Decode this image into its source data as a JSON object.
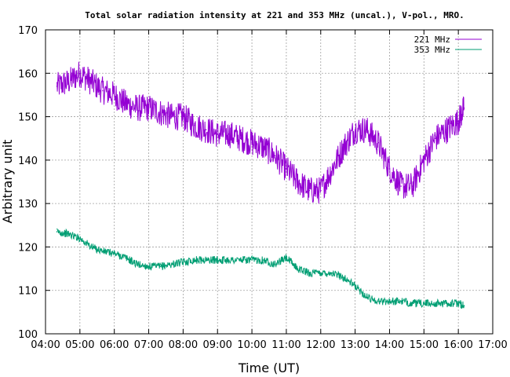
{
  "chart_data": {
    "type": "line",
    "title": "Total solar radiation intensity at 221 and 353 MHz (uncal.), V-pol., MRO.",
    "xlabel": "Time (UT)",
    "ylabel": "Arbitrary unit",
    "xlim": [
      "04:00",
      "17:00"
    ],
    "ylim": [
      100,
      170
    ],
    "x_tick_labels": [
      "04:00",
      "05:00",
      "06:00",
      "07:00",
      "08:00",
      "09:00",
      "10:00",
      "11:00",
      "12:00",
      "13:00",
      "14:00",
      "15:00",
      "16:00",
      "17:00"
    ],
    "y_tick_labels": [
      "100",
      "110",
      "120",
      "130",
      "140",
      "150",
      "160",
      "170"
    ],
    "grid": true,
    "legend_position": "top-right",
    "series": [
      {
        "name": "221 MHz",
        "color": "#9400d3",
        "x": [
          "04:20",
          "04:40",
          "05:00",
          "05:20",
          "05:40",
          "06:00",
          "06:20",
          "06:40",
          "07:00",
          "07:20",
          "07:40",
          "08:00",
          "08:20",
          "08:40",
          "09:00",
          "09:20",
          "09:40",
          "10:00",
          "10:20",
          "10:40",
          "11:00",
          "11:20",
          "11:40",
          "12:00",
          "12:20",
          "12:40",
          "13:00",
          "13:20",
          "13:40",
          "14:00",
          "14:20",
          "14:40",
          "15:00",
          "15:20",
          "15:40",
          "16:00",
          "16:10"
        ],
        "values": [
          157,
          158,
          160,
          158,
          156,
          155,
          153,
          152,
          152,
          151,
          150,
          150,
          148,
          147,
          146,
          146,
          145,
          144,
          143,
          141,
          138,
          135,
          133,
          133,
          138,
          143,
          147,
          147,
          144,
          138,
          134,
          134,
          140,
          145,
          147,
          149,
          152
        ]
      },
      {
        "name": "353 MHz",
        "color": "#009e73",
        "x": [
          "04:20",
          "04:40",
          "05:00",
          "05:20",
          "05:40",
          "06:00",
          "06:20",
          "06:40",
          "07:00",
          "07:20",
          "07:40",
          "08:00",
          "08:20",
          "08:40",
          "09:00",
          "09:20",
          "09:40",
          "10:00",
          "10:20",
          "10:40",
          "11:00",
          "11:20",
          "11:40",
          "12:00",
          "12:20",
          "12:40",
          "13:00",
          "13:20",
          "13:40",
          "14:00",
          "14:20",
          "14:40",
          "15:00",
          "15:20",
          "15:40",
          "16:00",
          "16:10"
        ],
        "values": [
          123.5,
          123,
          122,
          120,
          119,
          118.5,
          117.5,
          116,
          115.5,
          115.5,
          116,
          116.5,
          117,
          117,
          117,
          117,
          117,
          117,
          117,
          116,
          117.5,
          115,
          114,
          114,
          114,
          113,
          111,
          108.5,
          107.5,
          107.5,
          107.5,
          107,
          107,
          107,
          107,
          107,
          106.5
        ]
      }
    ]
  }
}
